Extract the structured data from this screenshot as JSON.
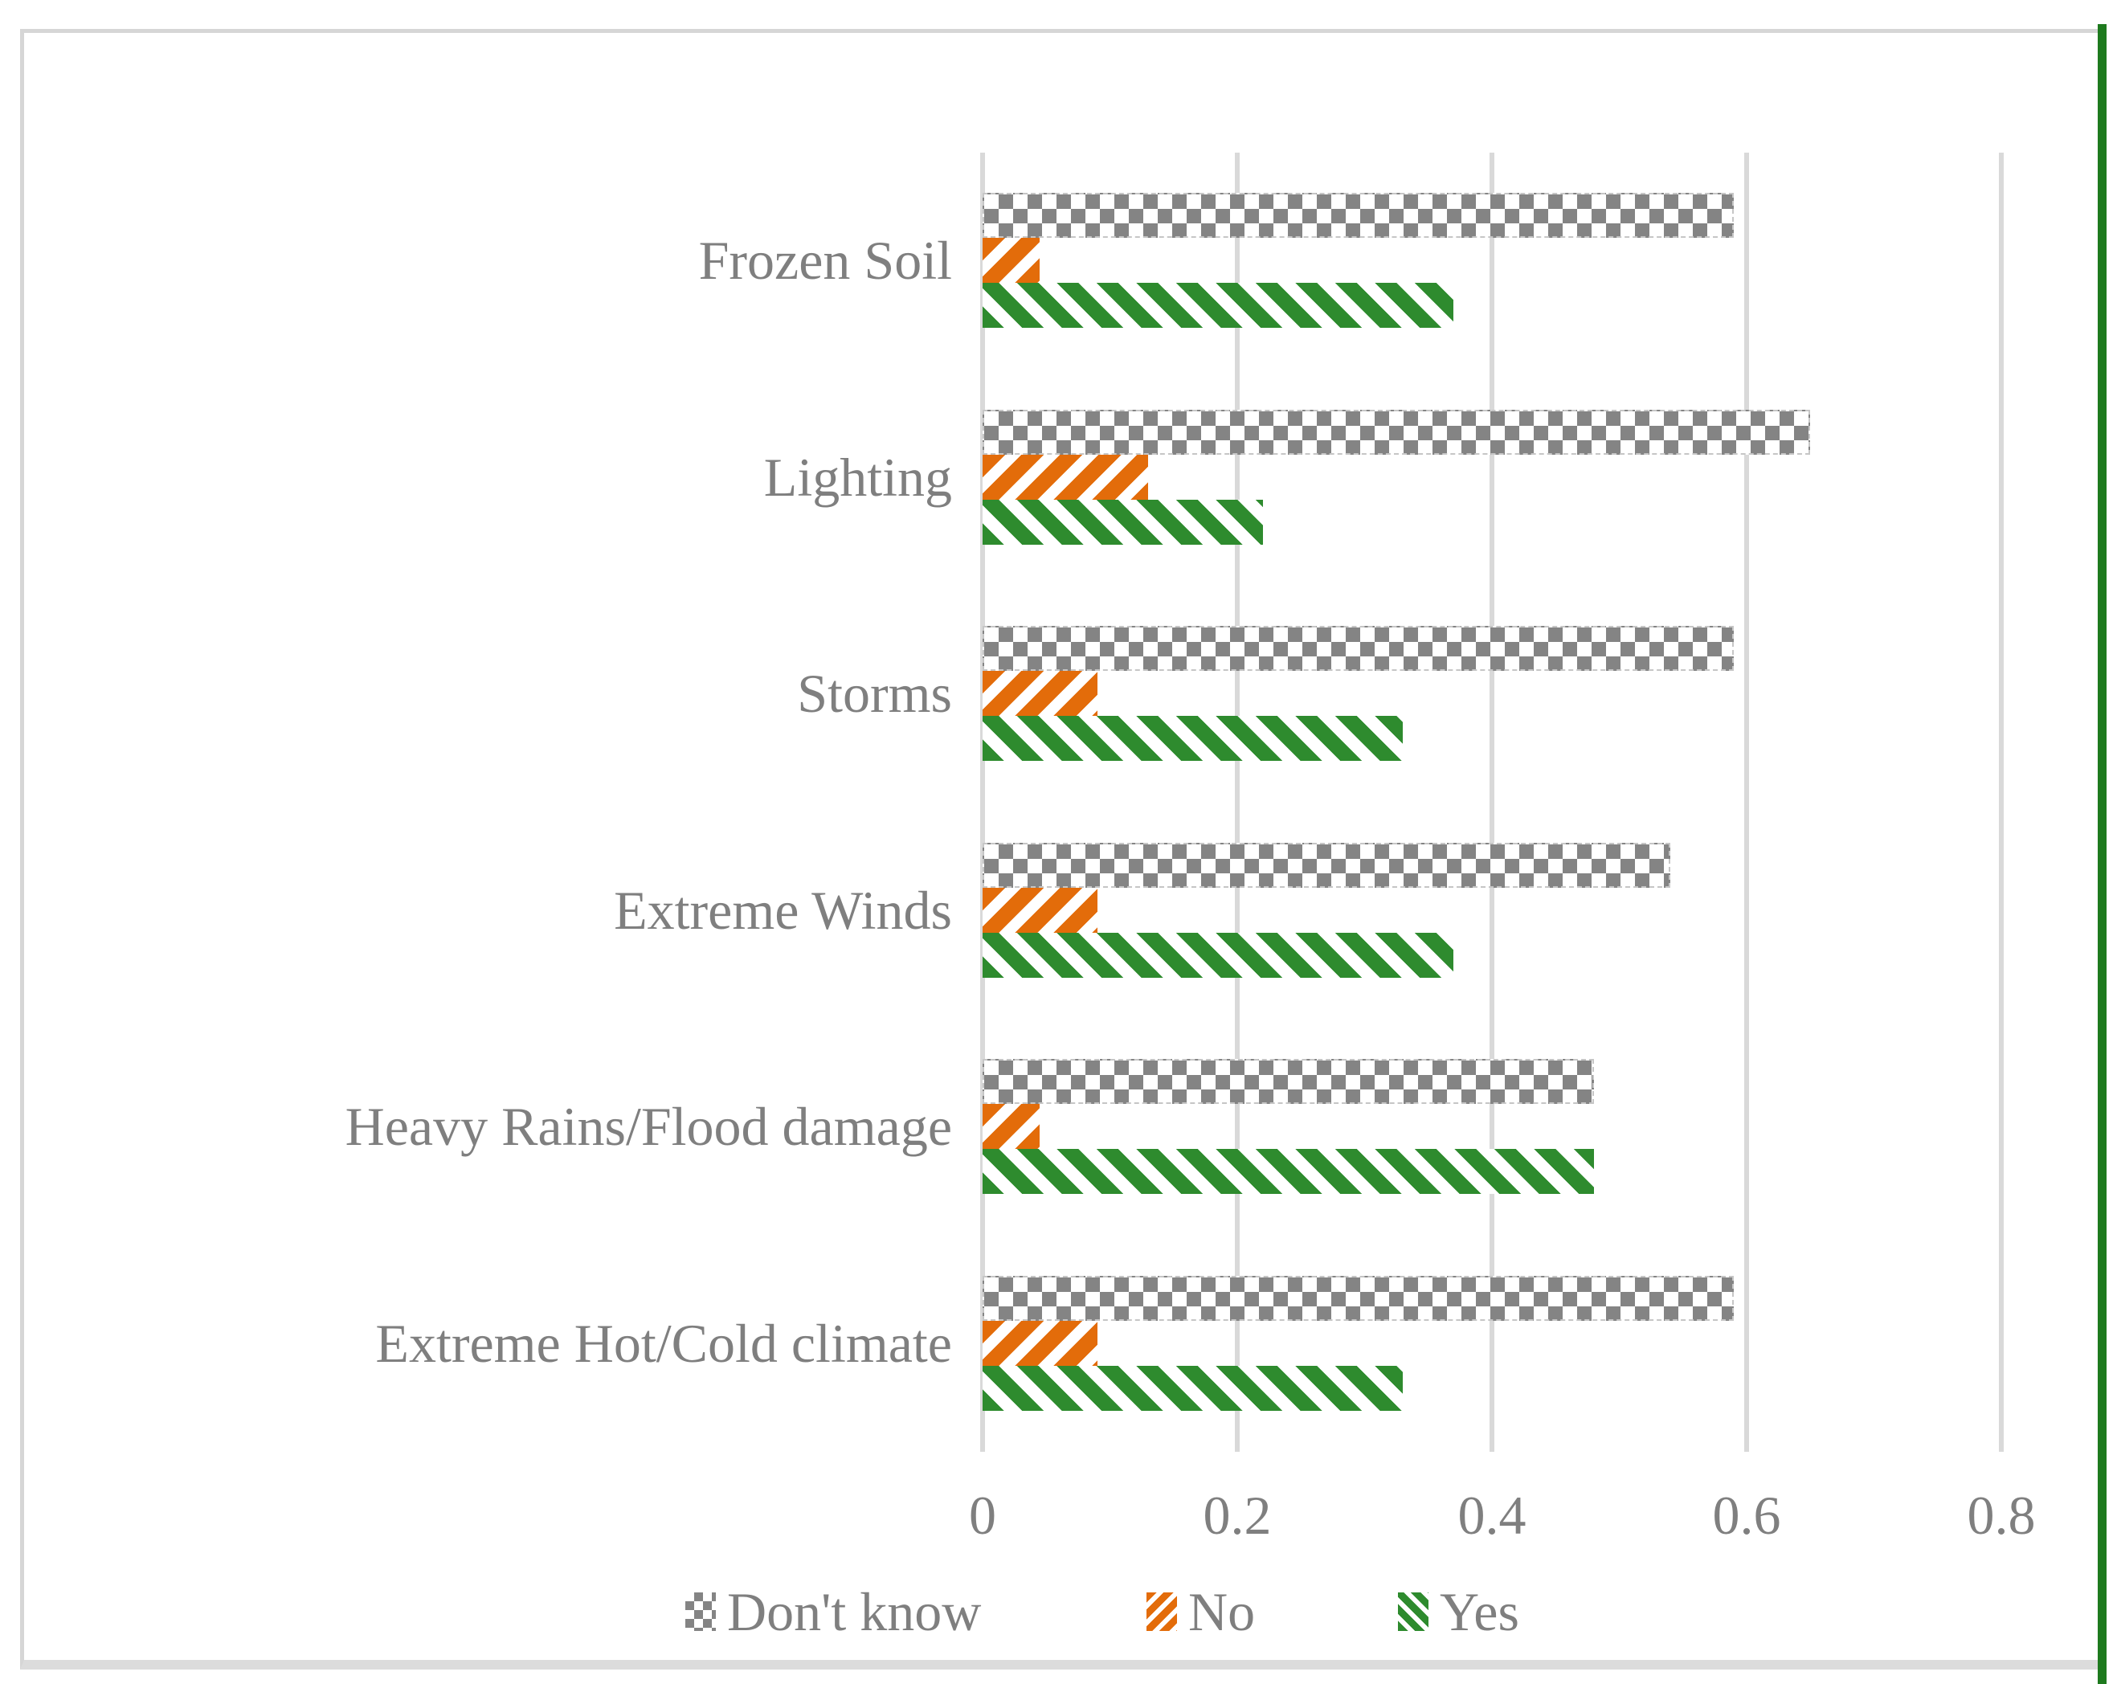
{
  "chart_data": {
    "type": "bar",
    "orientation": "horizontal",
    "title": "",
    "categories": [
      "Frozen Soil",
      "Lighting",
      "Storms",
      "Extreme Winds",
      "Heavy Rains/Flood damage",
      "Extreme Hot/Cold climate"
    ],
    "series": [
      {
        "name": "Don't know",
        "pattern": "checker",
        "color": "#848484",
        "values": [
          0.59,
          0.65,
          0.59,
          0.54,
          0.48,
          0.59
        ]
      },
      {
        "name": "No",
        "pattern": "diagonal-stripe-up",
        "color": "#e36c0a",
        "values": [
          0.045,
          0.13,
          0.09,
          0.09,
          0.045,
          0.09
        ]
      },
      {
        "name": "Yes",
        "pattern": "diagonal-stripe-down",
        "color": "#2e8b2e",
        "values": [
          0.37,
          0.22,
          0.33,
          0.37,
          0.48,
          0.33
        ]
      }
    ],
    "xlim": [
      0,
      0.8
    ],
    "x_ticks": [
      0,
      0.2,
      0.4,
      0.6,
      0.8
    ],
    "x_tick_labels": [
      "0",
      "0.2",
      "0.4",
      "0.6",
      "0.8"
    ],
    "grid": true,
    "legend_position": "bottom",
    "legend_labels": [
      "Don't know",
      "No",
      "Yes"
    ],
    "text_color": "#7f7f7f",
    "gridline_color": "#d9d9d9",
    "accent_green_edge": "#1e7a1e"
  }
}
